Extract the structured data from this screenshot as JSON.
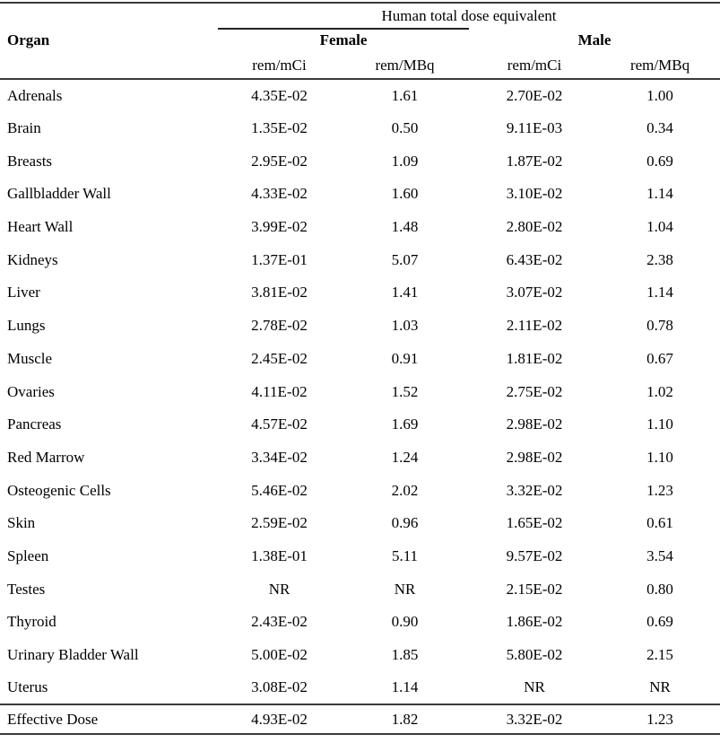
{
  "page": {
    "background": "#ffffff",
    "text_color": "#000000",
    "rule_color": "#3a3a3a"
  },
  "table": {
    "spanner": "Human total dose equivalent",
    "organ_header": "Organ",
    "group_headers": {
      "female": "Female",
      "male": "Male"
    },
    "unit_headers": [
      "rem/mCi",
      "rem/MBq",
      "rem/mCi",
      "rem/MBq"
    ],
    "rows": [
      {
        "organ": "Adrenals",
        "values": [
          "4.35E-02",
          "1.61",
          "2.70E-02",
          "1.00"
        ]
      },
      {
        "organ": "Brain",
        "values": [
          "1.35E-02",
          "0.50",
          "9.11E-03",
          "0.34"
        ]
      },
      {
        "organ": "Breasts",
        "values": [
          "2.95E-02",
          "1.09",
          "1.87E-02",
          "0.69"
        ]
      },
      {
        "organ": "Gallbladder Wall",
        "values": [
          "4.33E-02",
          "1.60",
          "3.10E-02",
          "1.14"
        ]
      },
      {
        "organ": "Heart Wall",
        "values": [
          "3.99E-02",
          "1.48",
          "2.80E-02",
          "1.04"
        ]
      },
      {
        "organ": "Kidneys",
        "values": [
          "1.37E-01",
          "5.07",
          "6.43E-02",
          "2.38"
        ]
      },
      {
        "organ": "Liver",
        "values": [
          "3.81E-02",
          "1.41",
          "3.07E-02",
          "1.14"
        ]
      },
      {
        "organ": "Lungs",
        "values": [
          "2.78E-02",
          "1.03",
          "2.11E-02",
          "0.78"
        ]
      },
      {
        "organ": "Muscle",
        "values": [
          "2.45E-02",
          "0.91",
          "1.81E-02",
          "0.67"
        ]
      },
      {
        "organ": "Ovaries",
        "values": [
          "4.11E-02",
          "1.52",
          "2.75E-02",
          "1.02"
        ]
      },
      {
        "organ": "Pancreas",
        "values": [
          "4.57E-02",
          "1.69",
          "2.98E-02",
          "1.10"
        ]
      },
      {
        "organ": "Red Marrow",
        "values": [
          "3.34E-02",
          "1.24",
          "2.98E-02",
          "1.10"
        ]
      },
      {
        "organ": "Osteogenic Cells",
        "values": [
          "5.46E-02",
          "2.02",
          "3.32E-02",
          "1.23"
        ]
      },
      {
        "organ": "Skin",
        "values": [
          "2.59E-02",
          "0.96",
          "1.65E-02",
          "0.61"
        ]
      },
      {
        "organ": "Spleen",
        "values": [
          "1.38E-01",
          "5.11",
          "9.57E-02",
          "3.54"
        ]
      },
      {
        "organ": "Testes",
        "values": [
          "NR",
          "NR",
          "2.15E-02",
          "0.80"
        ]
      },
      {
        "organ": "Thyroid",
        "values": [
          "2.43E-02",
          "0.90",
          "1.86E-02",
          "0.69"
        ]
      },
      {
        "organ": "Urinary Bladder Wall",
        "values": [
          "5.00E-02",
          "1.85",
          "5.80E-02",
          "2.15"
        ]
      },
      {
        "organ": "Uterus",
        "values": [
          "3.08E-02",
          "1.14",
          "NR",
          "NR"
        ]
      }
    ],
    "footer_row": {
      "organ": "Effective Dose",
      "values": [
        "4.93E-02",
        "1.82",
        "3.32E-02",
        "1.23"
      ]
    }
  }
}
